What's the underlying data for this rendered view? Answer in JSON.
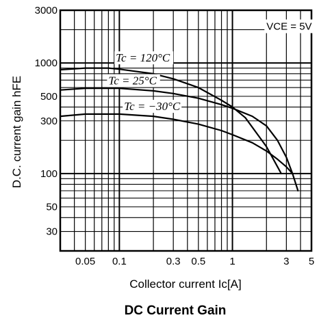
{
  "chart_data": {
    "type": "line",
    "title": "DC Current Gain",
    "xlabel": "Collector current   Ic[A]",
    "ylabel": "D.C. current gain   hFE",
    "x_scale": "log",
    "y_scale": "log",
    "xlim": [
      0.03,
      5
    ],
    "ylim": [
      20,
      3000
    ],
    "x_ticks": [
      {
        "value": 0.05,
        "label": "0.05"
      },
      {
        "value": 0.1,
        "label": "0.1"
      },
      {
        "value": 0.3,
        "label": "0.3"
      },
      {
        "value": 0.5,
        "label": "0.5"
      },
      {
        "value": 1,
        "label": "1"
      },
      {
        "value": 3,
        "label": "3"
      },
      {
        "value": 5,
        "label": "5"
      }
    ],
    "y_ticks": [
      {
        "value": 30,
        "label": "30"
      },
      {
        "value": 50,
        "label": "50"
      },
      {
        "value": 100,
        "label": "100"
      },
      {
        "value": 300,
        "label": "300"
      },
      {
        "value": 500,
        "label": "500"
      },
      {
        "value": 1000,
        "label": "1000"
      },
      {
        "value": 3000,
        "label": "3000"
      }
    ],
    "grid": true,
    "condition_label": "VCE = 5V",
    "series": [
      {
        "name": "Tc = 120°C",
        "x": [
          0.03,
          0.05,
          0.08,
          0.1,
          0.2,
          0.3,
          0.5,
          0.8,
          1.0,
          1.3,
          1.7,
          2.0,
          2.4,
          2.7
        ],
        "y": [
          870,
          900,
          900,
          880,
          800,
          720,
          600,
          460,
          400,
          320,
          220,
          175,
          125,
          100
        ]
      },
      {
        "name": "Tc = 25°C",
        "x": [
          0.03,
          0.05,
          0.1,
          0.2,
          0.3,
          0.5,
          0.8,
          1.0,
          1.5,
          2.0,
          2.5,
          3.0,
          3.4,
          3.8
        ],
        "y": [
          570,
          590,
          590,
          560,
          530,
          480,
          420,
          390,
          330,
          270,
          200,
          140,
          100,
          70
        ]
      },
      {
        "name": "Tc = −30°C",
        "x": [
          0.03,
          0.05,
          0.1,
          0.2,
          0.3,
          0.5,
          0.8,
          1.0,
          1.5,
          2.0,
          2.5,
          3.0,
          3.4
        ],
        "y": [
          330,
          345,
          345,
          330,
          310,
          280,
          245,
          225,
          190,
          160,
          135,
          115,
          100
        ]
      }
    ]
  }
}
